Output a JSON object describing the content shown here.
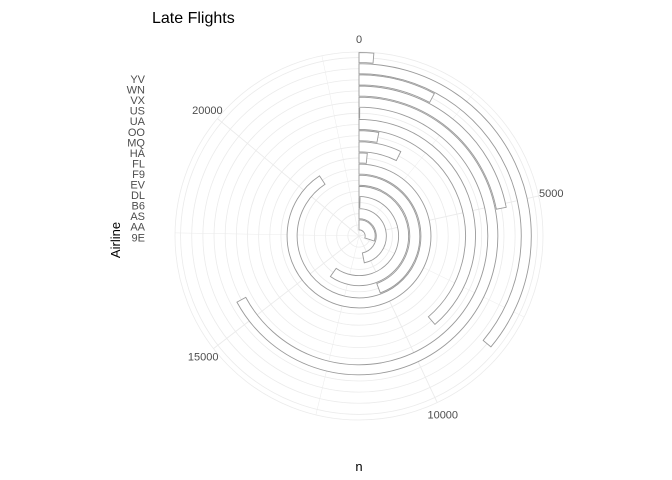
{
  "chart_data": {
    "type": "bar",
    "coord": "polar",
    "title": "Late Flights",
    "xlabel": "n",
    "ylabel": "Airline",
    "categories": [
      "9E",
      "AA",
      "AS",
      "B6",
      "DL",
      "EV",
      "F9",
      "FL",
      "HA",
      "MQ",
      "OO",
      "UA",
      "US",
      "VX",
      "WN",
      "YV"
    ],
    "values": [
      7000,
      10900,
      100,
      13900,
      10300,
      21100,
      370,
      1700,
      700,
      9000,
      20,
      15600,
      5100,
      1800,
      8400,
      300
    ],
    "theta_ticks": [
      0,
      5000,
      10000,
      15000,
      20000
    ],
    "theta_max": 23250,
    "grid": true,
    "bar_fill": "#ffffff",
    "bar_stroke": "#9a9a9a",
    "grid_color": "#ebebeb"
  }
}
